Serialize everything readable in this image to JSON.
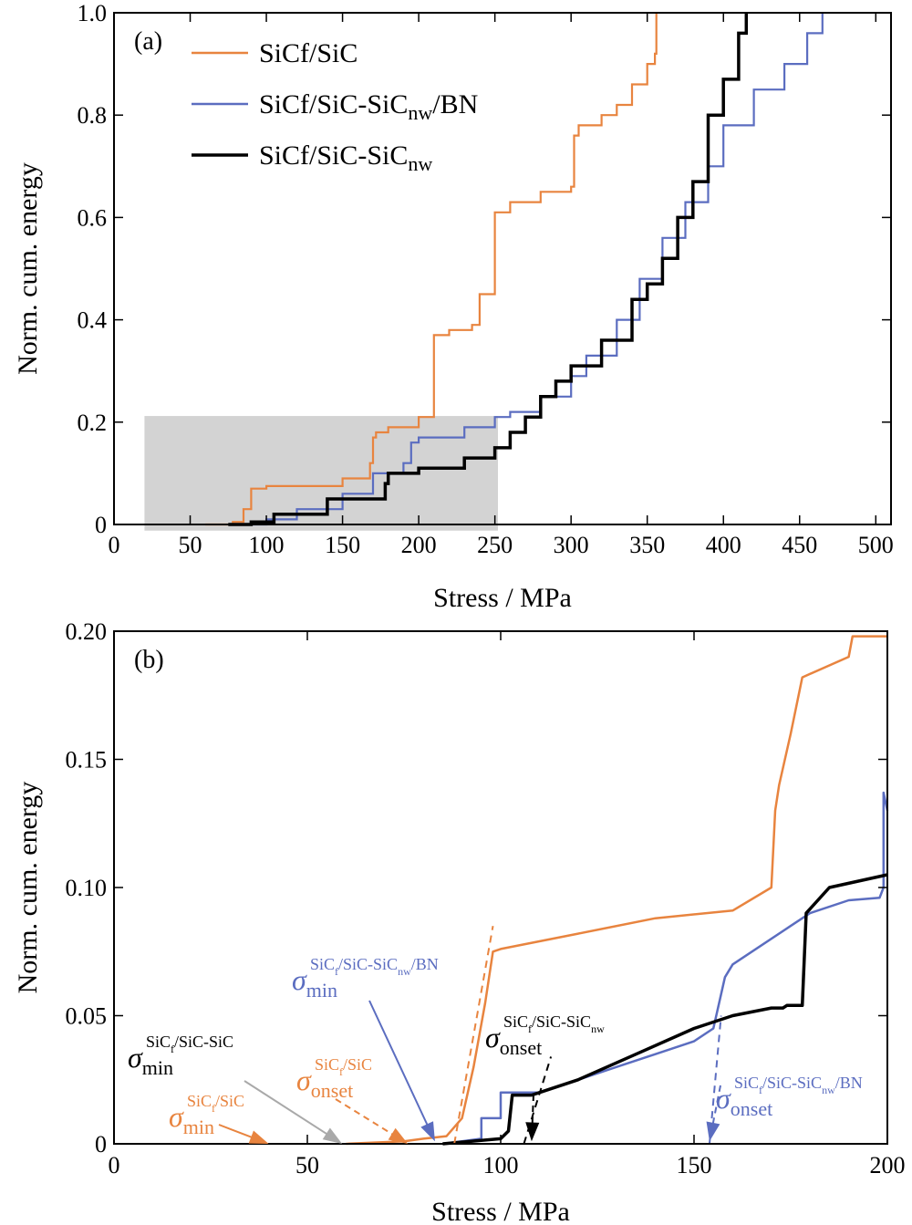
{
  "chart_data": [
    {
      "type": "line",
      "panel_label": "(a)",
      "xlabel": "Stress / MPa",
      "ylabel": "Norm. cum. energy",
      "xlim": [
        0,
        510
      ],
      "ylim": [
        0,
        1.0
      ],
      "xticks": [
        0,
        50,
        100,
        150,
        200,
        250,
        300,
        350,
        400,
        450,
        500
      ],
      "xtick_labels": [
        "0",
        "50",
        "100",
        "150",
        "200",
        "250",
        "300",
        "350",
        "400",
        "450",
        "500"
      ],
      "yticks": [
        0,
        0.2,
        0.4,
        0.6,
        0.8,
        1.0
      ],
      "ytick_labels": [
        "0",
        "0.2",
        "0.4",
        "0.6",
        "0.8",
        "1.0"
      ],
      "legend_position": "top-left",
      "highlight_box": {
        "x": [
          20,
          252
        ],
        "y": [
          -0.012,
          0.212
        ],
        "color": "#d3d3d3"
      },
      "series": [
        {
          "name": "SiCf/SiC",
          "legend_base": "SiCf/SiC",
          "legend_sub": "",
          "legend_tail": "",
          "color": "#E8843F",
          "x": [
            60,
            78,
            85,
            90,
            100,
            150,
            168,
            170,
            172,
            180,
            200,
            210,
            210,
            220,
            235,
            240,
            240,
            250,
            250,
            250,
            260,
            280,
            300,
            302,
            305,
            320,
            330,
            340,
            350,
            355,
            356
          ],
          "y": [
            0.0,
            0.005,
            0.03,
            0.07,
            0.075,
            0.09,
            0.12,
            0.17,
            0.18,
            0.19,
            0.21,
            0.36,
            0.37,
            0.38,
            0.39,
            0.4,
            0.45,
            0.52,
            0.58,
            0.61,
            0.63,
            0.65,
            0.66,
            0.76,
            0.78,
            0.8,
            0.82,
            0.86,
            0.9,
            0.92,
            1.0
          ]
        },
        {
          "name": "SiCf/SiC-SiCnw/BN",
          "legend_base": "SiCf/SiC-SiC",
          "legend_sub": "nw",
          "legend_tail": "/BN",
          "color": "#5B6DC0",
          "x": [
            80,
            100,
            120,
            150,
            170,
            190,
            195,
            200,
            230,
            250,
            260,
            280,
            300,
            310,
            330,
            345,
            360,
            375,
            390,
            400,
            420,
            440,
            455,
            465
          ],
          "y": [
            0.0,
            0.01,
            0.03,
            0.06,
            0.1,
            0.12,
            0.16,
            0.17,
            0.19,
            0.21,
            0.22,
            0.25,
            0.29,
            0.33,
            0.4,
            0.48,
            0.56,
            0.63,
            0.7,
            0.78,
            0.85,
            0.9,
            0.96,
            1.0
          ]
        },
        {
          "name": "SiCf/SiC-SiCnw",
          "legend_base": "SiCf/SiC-SiC",
          "legend_sub": "nw",
          "legend_tail": "",
          "color": "#000000",
          "x": [
            75,
            90,
            105,
            140,
            178,
            180,
            200,
            230,
            250,
            260,
            270,
            280,
            290,
            300,
            320,
            340,
            350,
            360,
            370,
            380,
            390,
            400,
            410,
            415
          ],
          "y": [
            0.0,
            0.005,
            0.02,
            0.05,
            0.08,
            0.1,
            0.11,
            0.13,
            0.15,
            0.18,
            0.21,
            0.25,
            0.28,
            0.31,
            0.36,
            0.44,
            0.47,
            0.52,
            0.6,
            0.67,
            0.8,
            0.87,
            0.96,
            1.0
          ]
        }
      ]
    },
    {
      "type": "line",
      "panel_label": "(b)",
      "xlabel": "Stress / MPa",
      "ylabel": "Norm. cum. energy",
      "xlim": [
        0,
        200
      ],
      "ylim": [
        0,
        0.2
      ],
      "xticks": [
        0,
        50,
        100,
        150,
        200
      ],
      "xtick_labels": [
        "0",
        "50",
        "100",
        "150",
        "200"
      ],
      "yticks": [
        0,
        0.05,
        0.1,
        0.15,
        0.2
      ],
      "ytick_labels": [
        "0",
        "0.05",
        "0.10",
        "0.15",
        "0.20"
      ],
      "series": [
        {
          "name": "SiCf/SiC",
          "color": "#E8843F",
          "x": [
            60,
            75,
            80,
            86,
            90,
            93,
            96,
            98,
            100,
            120,
            140,
            160,
            170,
            171,
            172,
            175,
            178,
            190,
            191,
            200
          ],
          "y": [
            0.0,
            0.001,
            0.002,
            0.003,
            0.01,
            0.03,
            0.055,
            0.075,
            0.076,
            0.082,
            0.088,
            0.091,
            0.1,
            0.13,
            0.14,
            0.16,
            0.182,
            0.19,
            0.198,
            0.198
          ]
        },
        {
          "name": "SiCf/SiC-SiCnw/BN",
          "color": "#5B6DC0",
          "x": [
            85,
            95,
            95,
            100,
            100,
            110,
            120,
            130,
            140,
            150,
            155,
            158,
            160,
            175,
            180,
            190,
            198,
            199,
            199,
            200
          ],
          "y": [
            0.0,
            0.002,
            0.01,
            0.01,
            0.02,
            0.02,
            0.025,
            0.03,
            0.035,
            0.04,
            0.045,
            0.065,
            0.07,
            0.085,
            0.09,
            0.095,
            0.096,
            0.1,
            0.137,
            0.13
          ]
        },
        {
          "name": "SiCf/SiC-SiCnw",
          "color": "#000000",
          "x": [
            85,
            100,
            102,
            103,
            108,
            110,
            120,
            135,
            150,
            160,
            170,
            173,
            174,
            178,
            179,
            185,
            200
          ],
          "y": [
            0.0,
            0.002,
            0.005,
            0.019,
            0.019,
            0.02,
            0.025,
            0.035,
            0.045,
            0.05,
            0.053,
            0.053,
            0.054,
            0.054,
            0.09,
            0.1,
            0.105
          ]
        }
      ],
      "annotations": [
        {
          "id": "min-sicf-sic",
          "sup": "SiC",
          "sup_sub": "f",
          "sup_tail": "/SiC",
          "kind": "min",
          "color": "#E8843F",
          "arrow_to": [
            40,
            0
          ]
        },
        {
          "id": "min-sic-sic",
          "sup": "SiC",
          "sup_sub": "f",
          "sup_tail": "/SiC-SiC",
          "kind": "min",
          "color": "#000000",
          "arrow_color": "#A9A9A9",
          "arrow_to": [
            59,
            0
          ]
        },
        {
          "id": "onset-sicf-sic",
          "sup": "SiC",
          "sup_sub": "f",
          "sup_tail": "/SiC",
          "kind": "onset",
          "color": "#E8843F",
          "arrow_to": [
            76,
            0
          ]
        },
        {
          "id": "min-bn",
          "sup": "SiC",
          "sup_sub": "f",
          "sup_tail": "/SiC-SiC",
          "sup_sub2": "nw",
          "sup_tail2": "/BN",
          "kind": "min",
          "color": "#5B6DC0",
          "arrow_to": [
            83,
            0.001
          ]
        },
        {
          "id": "onset-nw",
          "sup": "SiC",
          "sup_sub": "f",
          "sup_tail": "/SiC-SiC",
          "sup_sub2": "nw",
          "sup_tail2": "",
          "kind": "onset",
          "color": "#000000",
          "arrow_to": [
            108,
            0.001
          ]
        },
        {
          "id": "onset-bn",
          "sup": "SiC",
          "sup_sub": "f",
          "sup_tail": "/SiC-SiC",
          "sup_sub2": "nw",
          "sup_tail2": "/BN",
          "kind": "onset",
          "color": "#5B6DC0",
          "arrow_to": [
            154,
            0.001
          ]
        }
      ]
    }
  ]
}
